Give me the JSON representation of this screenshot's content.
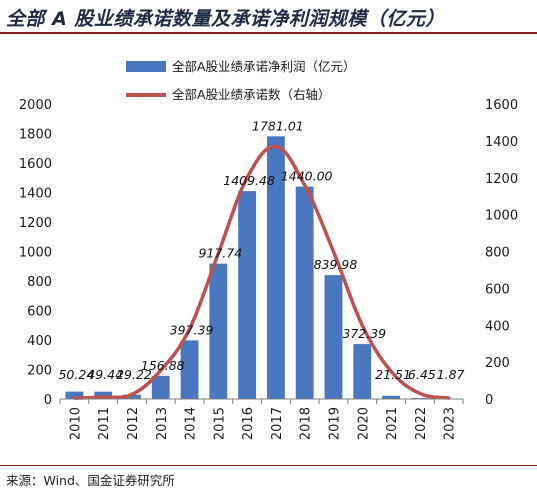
{
  "title": "全部 A 股业绩承诺数量及承诺净利润规模（亿元）",
  "source": "来源：Wind、国金证券研究所",
  "chart_data": {
    "type": "bar",
    "categories": [
      "2010",
      "2011",
      "2012",
      "2013",
      "2014",
      "2015",
      "2016",
      "2017",
      "2018",
      "2019",
      "2020",
      "2021",
      "2022",
      "2023"
    ],
    "series": [
      {
        "name": "全部A股业绩承诺净利润（亿元）",
        "type": "bar",
        "axis": "left",
        "color": "#4a78c0",
        "values": [
          50.24,
          49.44,
          29.22,
          156.88,
          397.39,
          917.74,
          1409.48,
          1781.01,
          1440.0,
          839.98,
          372.39,
          21.51,
          6.45,
          1.87
        ],
        "labels": [
          "50.24",
          "49.44",
          "29.22",
          "156.88",
          "397.39",
          "917.74",
          "1409.48",
          "1781.01",
          "1440.00",
          "839.98",
          "372.39",
          "21.51",
          "6.45",
          "1.87"
        ]
      },
      {
        "name": "全部A股业绩承诺数（右轴）",
        "type": "line",
        "axis": "right",
        "color": "#c0504d",
        "values": [
          5,
          10,
          25,
          155,
          380,
          790,
          1200,
          1370,
          1160,
          800,
          400,
          150,
          30,
          5
        ]
      }
    ],
    "ylim": [
      0,
      2000
    ],
    "y_ticks": [
      "0",
      "200",
      "400",
      "600",
      "800",
      "1000",
      "1200",
      "1400",
      "1600",
      "1800",
      "2000"
    ],
    "y2lim": [
      0,
      1600
    ],
    "y2_ticks": [
      "0",
      "200",
      "400",
      "600",
      "800",
      "1000",
      "1200",
      "1400",
      "1600"
    ],
    "legend_position": "top-center",
    "grid": false
  }
}
